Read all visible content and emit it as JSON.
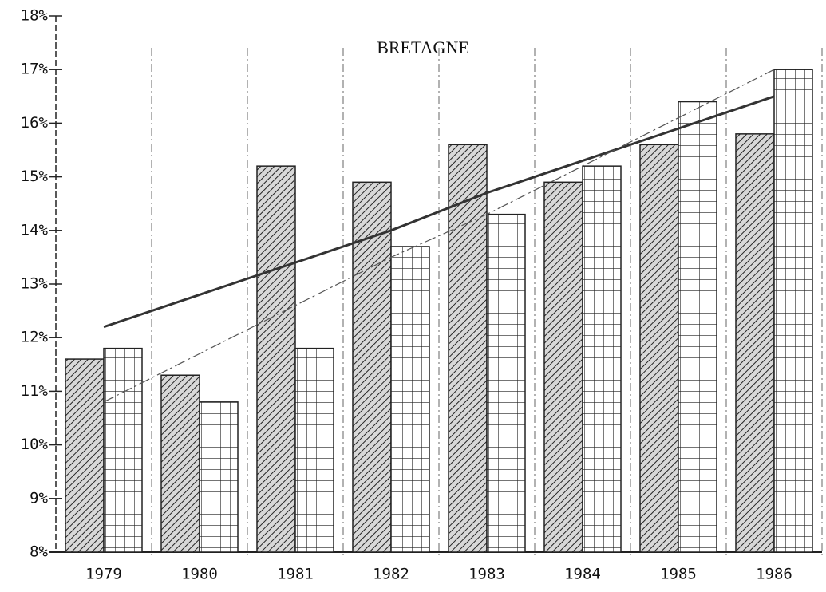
{
  "chart_data": {
    "type": "bar",
    "title": "BRETAGNE",
    "categories": [
      "1979",
      "1980",
      "1981",
      "1982",
      "1983",
      "1984",
      "1985",
      "1986"
    ],
    "series": [
      {
        "type": "bar",
        "pattern": "hatch",
        "color": "#222222",
        "values": [
          11.6,
          11.3,
          15.2,
          14.9,
          15.6,
          14.9,
          15.6,
          15.8
        ]
      },
      {
        "type": "bar",
        "pattern": "grid",
        "color": "#222222",
        "values": [
          11.8,
          10.8,
          11.8,
          13.7,
          14.3,
          15.2,
          16.4,
          17.0
        ]
      },
      {
        "type": "line",
        "style": "solid",
        "color": "#333333",
        "values": [
          12.2,
          12.8,
          13.4,
          14.0,
          14.7,
          15.3,
          15.9,
          16.5
        ]
      },
      {
        "type": "line",
        "style": "dashdot",
        "color": "#555555",
        "values": [
          10.8,
          11.7,
          12.6,
          13.5,
          14.3,
          15.2,
          16.1,
          17.0
        ]
      }
    ],
    "ylim": [
      8,
      18
    ],
    "yticks": [
      {
        "value": 8,
        "label": "8%"
      },
      {
        "value": 9,
        "label": "9%"
      },
      {
        "value": 10,
        "label": "10%"
      },
      {
        "value": 11,
        "label": "11%"
      },
      {
        "value": 12,
        "label": "12%"
      },
      {
        "value": 13,
        "label": "13%"
      },
      {
        "value": 14,
        "label": "14%"
      },
      {
        "value": 15,
        "label": "15%"
      },
      {
        "value": 16,
        "label": "16%"
      },
      {
        "value": 17,
        "label": "17%"
      },
      {
        "value": 18,
        "label": "18%"
      }
    ]
  }
}
